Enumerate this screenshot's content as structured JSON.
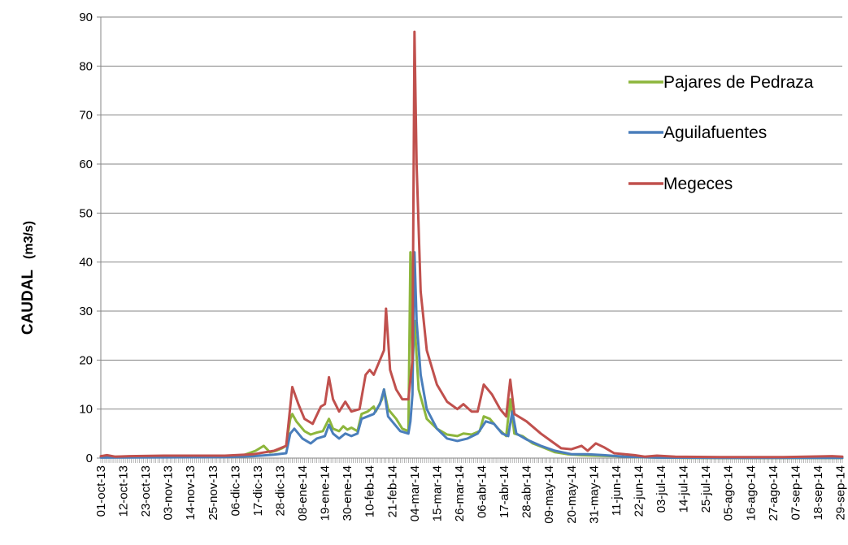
{
  "chart_data": {
    "type": "line",
    "ylabel": "CAUDAL",
    "ylabel_unit": "(m3/s)",
    "xlabel": "",
    "title": "",
    "ylim": [
      0,
      90
    ],
    "y_ticks": [
      0,
      10,
      20,
      30,
      40,
      50,
      60,
      70,
      80,
      90
    ],
    "x_range": [
      "2013-10-01",
      "2014-09-30"
    ],
    "x_tick_labels": [
      "01-oct-13",
      "12-oct-13",
      "23-oct-13",
      "03-nov-13",
      "14-nov-13",
      "25-nov-13",
      "06-dic-13",
      "17-dic-13",
      "28-dic-13",
      "08-ene-14",
      "19-ene-14",
      "30-ene-14",
      "10-feb-14",
      "21-feb-14",
      "04-mar-14",
      "15-mar-14",
      "26-mar-14",
      "06-abr-14",
      "17-abr-14",
      "28-abr-14",
      "09-may-14",
      "20-may-14",
      "31-may-14",
      "11-jun-14",
      "22-jun-14",
      "03-jul-14",
      "14-jul-14",
      "25-jul-14",
      "05-ago-14",
      "16-ago-14",
      "27-ago-14",
      "07-sep-14",
      "18-sep-14",
      "29-sep-14"
    ],
    "grid": "horizontal",
    "legend_position": "top-right",
    "series": [
      {
        "name": "Pajares de Pedraza",
        "color": "#8DB63C",
        "points": [
          [
            "2013-10-01",
            0.2
          ],
          [
            "2013-10-10",
            0.3
          ],
          [
            "2013-11-01",
            0.3
          ],
          [
            "2013-12-01",
            0.3
          ],
          [
            "2013-12-10",
            0.6
          ],
          [
            "2013-12-16",
            1.5
          ],
          [
            "2013-12-20",
            2.5
          ],
          [
            "2013-12-23",
            1.2
          ],
          [
            "2013-12-26",
            1.5
          ],
          [
            "2013-12-29",
            2.0
          ],
          [
            "2013-12-31",
            2.5
          ],
          [
            "2014-01-02",
            8.0
          ],
          [
            "2014-01-03",
            9.0
          ],
          [
            "2014-01-05",
            7.5
          ],
          [
            "2014-01-09",
            5.5
          ],
          [
            "2014-01-12",
            4.8
          ],
          [
            "2014-01-15",
            5.2
          ],
          [
            "2014-01-18",
            5.5
          ],
          [
            "2014-01-21",
            8.0
          ],
          [
            "2014-01-23",
            6.0
          ],
          [
            "2014-01-26",
            5.5
          ],
          [
            "2014-01-28",
            6.5
          ],
          [
            "2014-01-30",
            5.8
          ],
          [
            "2014-02-01",
            6.2
          ],
          [
            "2014-02-04",
            5.5
          ],
          [
            "2014-02-06",
            9.0
          ],
          [
            "2014-02-09",
            9.5
          ],
          [
            "2014-02-12",
            10.5
          ],
          [
            "2014-02-13",
            9.5
          ],
          [
            "2014-02-16",
            12.0
          ],
          [
            "2014-02-17",
            14.0
          ],
          [
            "2014-02-19",
            10.0
          ],
          [
            "2014-02-23",
            8.0
          ],
          [
            "2014-02-26",
            6.0
          ],
          [
            "2014-03-01",
            5.5
          ],
          [
            "2014-03-02",
            42.0
          ],
          [
            "2014-03-03",
            18.0
          ],
          [
            "2014-03-04",
            28.0
          ],
          [
            "2014-03-06",
            14.0
          ],
          [
            "2014-03-10",
            8.0
          ],
          [
            "2014-03-15",
            6.0
          ],
          [
            "2014-03-20",
            4.8
          ],
          [
            "2014-03-25",
            4.5
          ],
          [
            "2014-03-28",
            5.0
          ],
          [
            "2014-04-01",
            4.8
          ],
          [
            "2014-04-05",
            5.5
          ],
          [
            "2014-04-07",
            8.5
          ],
          [
            "2014-04-10",
            8.0
          ],
          [
            "2014-04-14",
            6.0
          ],
          [
            "2014-04-18",
            4.5
          ],
          [
            "2014-04-20",
            12.0
          ],
          [
            "2014-04-22",
            5.0
          ],
          [
            "2014-04-26",
            4.5
          ],
          [
            "2014-05-01",
            3.0
          ],
          [
            "2014-05-06",
            2.2
          ],
          [
            "2014-05-12",
            1.2
          ],
          [
            "2014-05-18",
            0.8
          ],
          [
            "2014-05-25",
            0.6
          ],
          [
            "2014-06-01",
            0.5
          ],
          [
            "2014-06-10",
            0.4
          ],
          [
            "2014-06-20",
            0.2
          ],
          [
            "2014-07-01",
            0.1
          ],
          [
            "2014-07-15",
            0.05
          ],
          [
            "2014-08-15",
            0.02
          ],
          [
            "2014-09-30",
            0.02
          ]
        ]
      },
      {
        "name": "Aguilafuentes",
        "color": "#4A7EBB",
        "points": [
          [
            "2013-10-01",
            0.1
          ],
          [
            "2013-11-01",
            0.15
          ],
          [
            "2013-12-01",
            0.2
          ],
          [
            "2013-12-15",
            0.4
          ],
          [
            "2013-12-25",
            0.7
          ],
          [
            "2013-12-31",
            1.0
          ],
          [
            "2014-01-02",
            5.0
          ],
          [
            "2014-01-04",
            6.0
          ],
          [
            "2014-01-06",
            5.0
          ],
          [
            "2014-01-08",
            4.0
          ],
          [
            "2014-01-12",
            3.0
          ],
          [
            "2014-01-15",
            4.0
          ],
          [
            "2014-01-19",
            4.5
          ],
          [
            "2014-01-21",
            6.8
          ],
          [
            "2014-01-23",
            5.0
          ],
          [
            "2014-01-26",
            4.0
          ],
          [
            "2014-01-29",
            5.0
          ],
          [
            "2014-02-01",
            4.5
          ],
          [
            "2014-02-04",
            5.0
          ],
          [
            "2014-02-06",
            8.0
          ],
          [
            "2014-02-09",
            8.5
          ],
          [
            "2014-02-12",
            9.0
          ],
          [
            "2014-02-15",
            11.0
          ],
          [
            "2014-02-17",
            14.0
          ],
          [
            "2014-02-19",
            8.5
          ],
          [
            "2014-02-22",
            7.0
          ],
          [
            "2014-02-25",
            5.5
          ],
          [
            "2014-03-01",
            5.0
          ],
          [
            "2014-03-02",
            7.5
          ],
          [
            "2014-03-03",
            13.0
          ],
          [
            "2014-03-04",
            42.0
          ],
          [
            "2014-03-05",
            28.0
          ],
          [
            "2014-03-07",
            17.0
          ],
          [
            "2014-03-10",
            10.0
          ],
          [
            "2014-03-15",
            6.0
          ],
          [
            "2014-03-20",
            4.0
          ],
          [
            "2014-03-25",
            3.5
          ],
          [
            "2014-03-30",
            4.0
          ],
          [
            "2014-04-04",
            5.0
          ],
          [
            "2014-04-08",
            7.5
          ],
          [
            "2014-04-12",
            7.0
          ],
          [
            "2014-04-16",
            5.0
          ],
          [
            "2014-04-19",
            4.5
          ],
          [
            "2014-04-21",
            9.5
          ],
          [
            "2014-04-23",
            5.0
          ],
          [
            "2014-04-28",
            3.8
          ],
          [
            "2014-05-05",
            2.5
          ],
          [
            "2014-05-12",
            1.5
          ],
          [
            "2014-05-20",
            0.8
          ],
          [
            "2014-05-28",
            0.8
          ],
          [
            "2014-06-05",
            0.6
          ],
          [
            "2014-06-15",
            0.3
          ],
          [
            "2014-07-01",
            0.1
          ],
          [
            "2014-08-01",
            0.05
          ],
          [
            "2014-09-30",
            0.05
          ]
        ]
      },
      {
        "name": "Megeces",
        "color": "#C0504D",
        "points": [
          [
            "2013-10-01",
            0.4
          ],
          [
            "2013-10-04",
            0.6
          ],
          [
            "2013-10-08",
            0.3
          ],
          [
            "2013-10-15",
            0.4
          ],
          [
            "2013-11-01",
            0.5
          ],
          [
            "2013-12-01",
            0.5
          ],
          [
            "2013-12-15",
            0.8
          ],
          [
            "2013-12-25",
            1.5
          ],
          [
            "2013-12-31",
            2.5
          ],
          [
            "2014-01-03",
            14.5
          ],
          [
            "2014-01-06",
            11.0
          ],
          [
            "2014-01-09",
            8.0
          ],
          [
            "2014-01-13",
            7.0
          ],
          [
            "2014-01-17",
            10.5
          ],
          [
            "2014-01-19",
            11.0
          ],
          [
            "2014-01-21",
            16.5
          ],
          [
            "2014-01-23",
            12.0
          ],
          [
            "2014-01-26",
            9.5
          ],
          [
            "2014-01-29",
            11.5
          ],
          [
            "2014-02-01",
            9.5
          ],
          [
            "2014-02-05",
            10.0
          ],
          [
            "2014-02-08",
            17.0
          ],
          [
            "2014-02-10",
            18.0
          ],
          [
            "2014-02-12",
            17.0
          ],
          [
            "2014-02-15",
            20.0
          ],
          [
            "2014-02-17",
            22.0
          ],
          [
            "2014-02-18",
            30.5
          ],
          [
            "2014-02-20",
            18.0
          ],
          [
            "2014-02-23",
            14.0
          ],
          [
            "2014-02-26",
            12.0
          ],
          [
            "2014-03-01",
            12.0
          ],
          [
            "2014-03-03",
            20.0
          ],
          [
            "2014-03-04",
            87.0
          ],
          [
            "2014-03-05",
            60.0
          ],
          [
            "2014-03-07",
            34.0
          ],
          [
            "2014-03-10",
            22.0
          ],
          [
            "2014-03-15",
            15.0
          ],
          [
            "2014-03-20",
            11.5
          ],
          [
            "2014-03-25",
            10.0
          ],
          [
            "2014-03-28",
            11.0
          ],
          [
            "2014-04-01",
            9.5
          ],
          [
            "2014-04-04",
            9.5
          ],
          [
            "2014-04-07",
            15.0
          ],
          [
            "2014-04-11",
            13.0
          ],
          [
            "2014-04-15",
            10.0
          ],
          [
            "2014-04-18",
            8.5
          ],
          [
            "2014-04-20",
            16.0
          ],
          [
            "2014-04-22",
            9.0
          ],
          [
            "2014-04-28",
            7.5
          ],
          [
            "2014-05-05",
            5.0
          ],
          [
            "2014-05-10",
            3.5
          ],
          [
            "2014-05-15",
            2.0
          ],
          [
            "2014-05-20",
            1.8
          ],
          [
            "2014-05-25",
            2.5
          ],
          [
            "2014-05-28",
            1.5
          ],
          [
            "2014-06-01",
            3.0
          ],
          [
            "2014-06-05",
            2.2
          ],
          [
            "2014-06-10",
            1.0
          ],
          [
            "2014-06-20",
            0.6
          ],
          [
            "2014-06-25",
            0.3
          ],
          [
            "2014-07-01",
            0.5
          ],
          [
            "2014-07-10",
            0.3
          ],
          [
            "2014-08-01",
            0.2
          ],
          [
            "2014-09-01",
            0.2
          ],
          [
            "2014-09-25",
            0.4
          ],
          [
            "2014-09-30",
            0.3
          ]
        ]
      }
    ]
  }
}
